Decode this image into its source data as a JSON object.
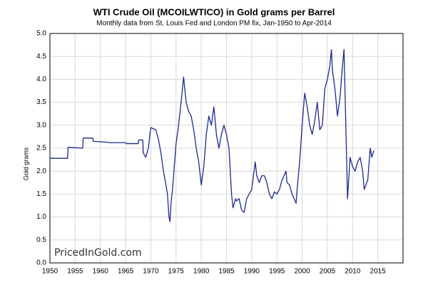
{
  "chart_data": {
    "type": "line",
    "title": "WTI Crude Oil (MCOILWTICO) in Gold grams per Barrel",
    "subtitle": "Monthly data from St. Louis Fed and London PM fix, Jan-1950 to Apr-2014",
    "y_label": "Gold grams",
    "watermark": "PricedInGold.com",
    "xlim": [
      1950,
      2020
    ],
    "xticks": [
      1950,
      1955,
      1960,
      1965,
      1970,
      1975,
      1980,
      1985,
      1990,
      1995,
      2000,
      2005,
      2010,
      2015
    ],
    "ylim": [
      0,
      5
    ],
    "yticks": [
      {
        "value": 0,
        "label": "0.0"
      },
      {
        "value": 0.5,
        "label": "0.5"
      },
      {
        "value": 1,
        "label": "1.0"
      },
      {
        "value": 1.5,
        "label": "1.5"
      },
      {
        "value": 2,
        "label": "2.0"
      },
      {
        "value": 2.5,
        "label": "2.5"
      },
      {
        "value": 3,
        "label": "3.0"
      },
      {
        "value": 3.5,
        "label": "3.5"
      },
      {
        "value": 4,
        "label": "4.0"
      },
      {
        "value": 4.5,
        "label": "4.5"
      },
      {
        "value": 5,
        "label": "5.0"
      }
    ],
    "grid": true,
    "series": [
      {
        "color": "#1c2a8c",
        "x": [
          1950,
          1953.5,
          1953.6,
          1956.5,
          1956.6,
          1958.5,
          1958.6,
          1961.5,
          1961.6,
          1965,
          1965.1,
          1967.5,
          1967.6,
          1968.4,
          1968.5,
          1969,
          1969.5,
          1970,
          1971,
          1971.5,
          1972,
          1972.5,
          1973,
          1973.3,
          1973.6,
          1973.8,
          1974,
          1974.3,
          1975,
          1975.5,
          1976,
          1976.5,
          1977,
          1977.5,
          1978,
          1978.5,
          1979,
          1979.5,
          1980,
          1980.5,
          1981,
          1981.5,
          1982,
          1982.5,
          1983,
          1983.5,
          1984,
          1984.5,
          1985,
          1985.5,
          1986,
          1986.3,
          1986.8,
          1987,
          1987.5,
          1988,
          1988.5,
          1989,
          1989.5,
          1990,
          1990.7,
          1991,
          1991.5,
          1992,
          1992.5,
          1993,
          1993.5,
          1994,
          1994.5,
          1995,
          1995.5,
          1996,
          1996.8,
          1997,
          1997.5,
          1998,
          1998.8,
          1999,
          1999.5,
          2000,
          2000.5,
          2001,
          2001.5,
          2002,
          2002.5,
          2003,
          2003.5,
          2004,
          2004.5,
          2005,
          2005.5,
          2005.8,
          2006,
          2006.5,
          2007,
          2007.5,
          2008,
          2008.3,
          2008.7,
          2009,
          2009.5,
          2010,
          2010.5,
          2011,
          2011.5,
          2012,
          2012.3,
          2012.8,
          2013,
          2013.5,
          2013.8,
          2014.2
        ],
        "values": [
          2.28,
          2.28,
          2.52,
          2.5,
          2.72,
          2.72,
          2.65,
          2.63,
          2.62,
          2.62,
          2.6,
          2.6,
          2.68,
          2.68,
          2.4,
          2.3,
          2.5,
          2.95,
          2.9,
          2.7,
          2.4,
          2.0,
          1.7,
          1.5,
          1.0,
          0.9,
          1.3,
          1.6,
          2.6,
          3.0,
          3.5,
          4.05,
          3.5,
          3.3,
          3.2,
          2.9,
          2.5,
          2.2,
          1.7,
          2.1,
          2.8,
          3.2,
          3.0,
          3.4,
          2.8,
          2.5,
          2.8,
          3.0,
          2.8,
          2.5,
          1.5,
          1.2,
          1.4,
          1.35,
          1.4,
          1.15,
          1.1,
          1.4,
          1.5,
          1.6,
          2.2,
          1.9,
          1.75,
          1.9,
          1.9,
          1.75,
          1.5,
          1.4,
          1.55,
          1.5,
          1.6,
          1.8,
          2.0,
          1.75,
          1.7,
          1.5,
          1.3,
          1.6,
          2.2,
          3.0,
          3.7,
          3.4,
          3.0,
          2.8,
          3.1,
          3.5,
          2.9,
          3.0,
          3.8,
          4.0,
          4.3,
          4.65,
          4.2,
          3.8,
          3.2,
          3.6,
          4.3,
          4.65,
          2.8,
          1.4,
          2.3,
          2.1,
          2.0,
          2.2,
          2.3,
          2.0,
          1.6,
          1.75,
          1.8,
          2.5,
          2.3,
          2.45
        ]
      }
    ]
  }
}
